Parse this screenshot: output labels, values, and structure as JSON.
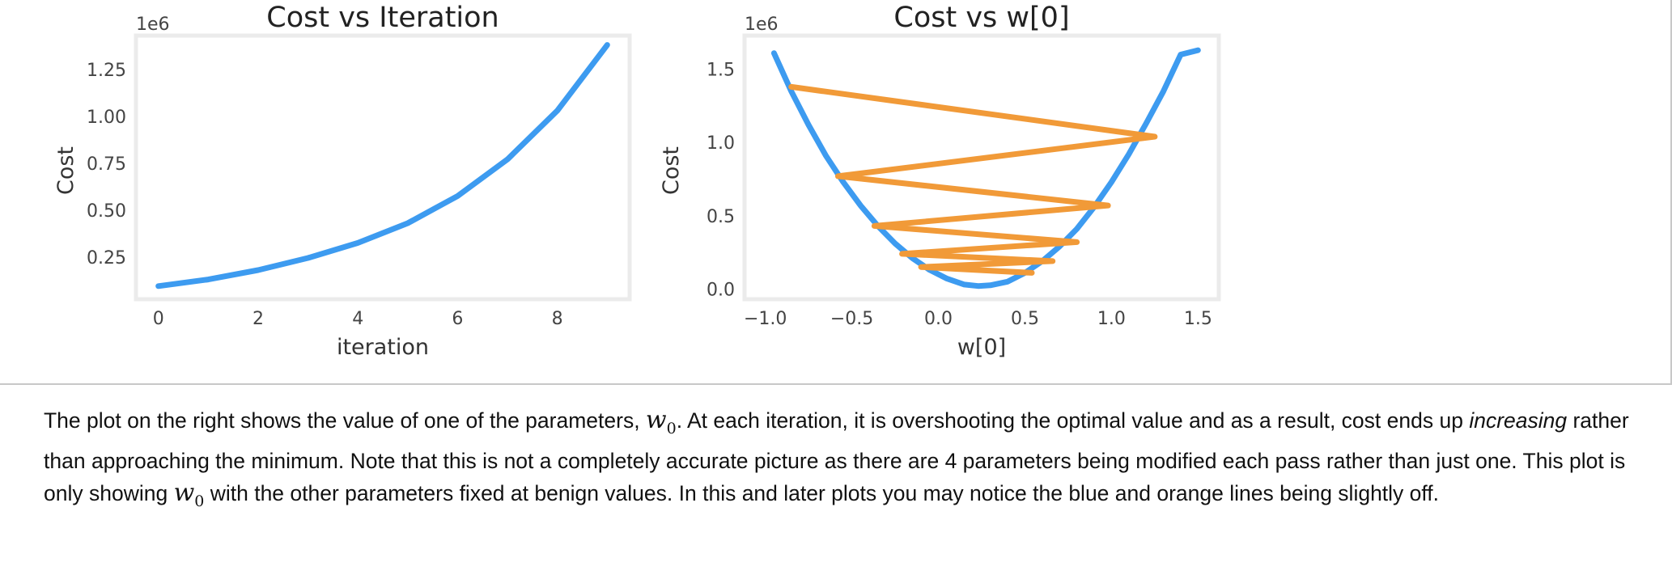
{
  "chart_data": [
    {
      "type": "line",
      "title": "Cost vs Iteration",
      "xlabel": "iteration",
      "ylabel": "Cost",
      "y_offset_label": "1e6",
      "xlim": [
        -0.45,
        9.45
      ],
      "ylim": [
        25000,
        1430000
      ],
      "x_ticks": [
        0,
        2,
        4,
        6,
        8
      ],
      "x_tick_labels": [
        "0",
        "2",
        "4",
        "6",
        "8"
      ],
      "y_ticks": [
        250000,
        500000,
        750000,
        1000000,
        1250000
      ],
      "y_tick_labels": [
        "0.25",
        "0.50",
        "0.75",
        "1.00",
        "1.25"
      ],
      "grid": false,
      "series": [
        {
          "color": "#3d9bf0",
          "x": [
            0,
            1,
            2,
            3,
            4,
            5,
            6,
            7,
            8,
            9
          ],
          "y": [
            95000,
            130000,
            180000,
            245000,
            325000,
            430000,
            575000,
            770000,
            1030000,
            1380000
          ]
        }
      ]
    },
    {
      "type": "line",
      "title": "Cost vs w[0]",
      "xlabel": "w[0]",
      "ylabel": "Cost",
      "y_offset_label": "1e6",
      "xlim": [
        -1.12,
        1.62
      ],
      "ylim": [
        -70000,
        1730000
      ],
      "x_ticks": [
        -1.0,
        -0.5,
        0.0,
        0.5,
        1.0,
        1.5
      ],
      "x_tick_labels": [
        "−1.0",
        "−0.5",
        "0.0",
        "0.5",
        "1.0",
        "1.5"
      ],
      "y_ticks": [
        0,
        500000,
        1000000,
        1500000
      ],
      "y_tick_labels": [
        "0.0",
        "0.5",
        "1.0",
        "1.5"
      ],
      "grid": false,
      "series": [
        {
          "kind": "curve",
          "color": "#3d9bf0",
          "x": [
            -0.95,
            -0.85,
            -0.75,
            -0.65,
            -0.55,
            -0.45,
            -0.35,
            -0.25,
            -0.15,
            -0.05,
            0.05,
            0.15,
            0.23,
            0.3,
            0.4,
            0.5,
            0.6,
            0.7,
            0.8,
            0.9,
            1.0,
            1.1,
            1.2,
            1.3,
            1.4,
            1.5
          ],
          "y": [
            1610000,
            1350000,
            1120000,
            910000,
            730000,
            570000,
            430000,
            310000,
            210000,
            130000,
            70000,
            30000,
            20000,
            25000,
            50000,
            110000,
            190000,
            290000,
            410000,
            560000,
            730000,
            920000,
            1130000,
            1350000,
            1600000,
            1630000
          ]
        },
        {
          "kind": "path",
          "color": "#f19a38",
          "x": [
            -0.85,
            1.25,
            -0.58,
            0.98,
            -0.37,
            0.8,
            -0.21,
            0.66,
            -0.1,
            0.54
          ],
          "y": [
            1380000,
            1040000,
            770000,
            570000,
            430000,
            320000,
            240000,
            190000,
            150000,
            110000
          ]
        }
      ]
    }
  ],
  "caption": {
    "p1": "The plot on the right shows the value of one of the parameters, ",
    "w": "w",
    "sub": "0",
    "p2": ". At each iteration, it is overshooting the optimal value and as a result, cost ends up ",
    "em": "increasing",
    "p3": " rather than approaching the minimum. Note that this is not a completely accurate picture as there are 4 parameters being modified each pass rather than just one. This plot is only showing ",
    "w2": "w",
    "sub2": "0",
    "p4": " with the other parameters fixed at benign values. In this and later plots you may notice the blue and orange lines being slightly off."
  }
}
